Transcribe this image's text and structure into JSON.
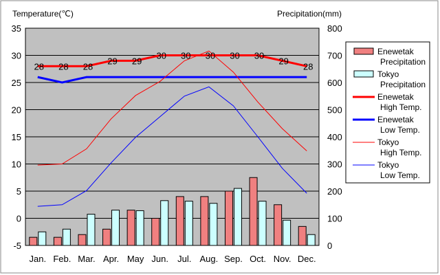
{
  "chart_data": {
    "type": "bar",
    "categories": [
      "Jan.",
      "Feb.",
      "Mar.",
      "Apr.",
      "May",
      "Jun.",
      "Jul.",
      "Aug.",
      "Sep.",
      "Oct.",
      "Nov.",
      "Dec."
    ],
    "left_axis_title": "Temperature(℃)",
    "right_axis_title": "Precipitation(mm)",
    "ylim_left": [
      -5,
      35
    ],
    "ylim_right": [
      0,
      800
    ],
    "yticks_left": [
      "-5",
      "0",
      "5",
      "10",
      "15",
      "20",
      "25",
      "30",
      "35"
    ],
    "yticks_right": [
      "0",
      "100",
      "200",
      "300",
      "400",
      "500",
      "600",
      "700",
      "800"
    ],
    "grid": true,
    "legend_position": "right",
    "bar_series": [
      {
        "name": "Enewetak\nPrecipitation",
        "color": "#f08080",
        "values": [
          30,
          30,
          40,
          60,
          130,
          100,
          180,
          180,
          200,
          250,
          150,
          70
        ]
      },
      {
        "name": "Tokyo\nPrecipitation",
        "color": "#ccffff",
        "values": [
          50,
          60,
          115,
          130,
          128,
          165,
          163,
          155,
          210,
          163,
          93,
          40
        ]
      }
    ],
    "line_series": [
      {
        "name": "Enewetak\nHigh Temp.",
        "color": "#ff0000",
        "width": 3,
        "values": [
          28,
          28,
          28,
          29,
          29,
          30,
          30,
          30,
          30,
          30,
          29,
          28
        ],
        "labels": [
          "28",
          "28",
          "28",
          "29",
          "29",
          "30",
          "30",
          "30",
          "30",
          "30",
          "29",
          "28"
        ]
      },
      {
        "name": "Enewetak\nLow Temp.",
        "color": "#0000ff",
        "width": 3,
        "values": [
          26,
          25,
          26,
          26,
          26,
          26,
          26,
          26,
          26,
          26,
          26,
          26
        ]
      },
      {
        "name": "Tokyo\nHigh Temp.",
        "color": "#ff0000",
        "width": 1,
        "values": [
          9.8,
          10.0,
          12.8,
          18.3,
          22.6,
          25.2,
          29.0,
          30.8,
          26.9,
          21.4,
          16.5,
          12.4
        ]
      },
      {
        "name": "Tokyo\nLow Temp.",
        "color": "#0000ff",
        "width": 1,
        "values": [
          2.2,
          2.5,
          5.1,
          10.2,
          14.9,
          18.7,
          22.5,
          24.2,
          20.7,
          15.0,
          9.2,
          4.6
        ]
      }
    ]
  }
}
